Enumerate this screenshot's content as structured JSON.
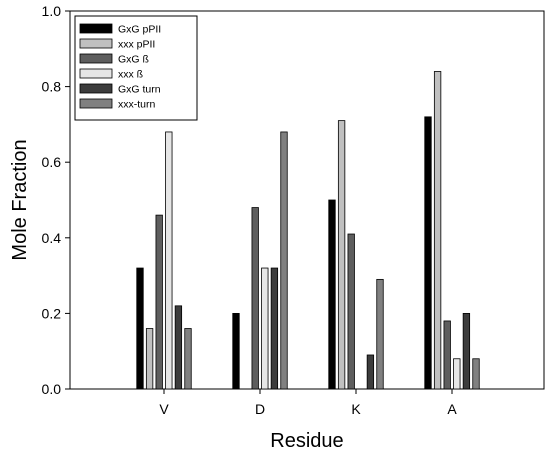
{
  "chart_data": {
    "type": "bar",
    "title": "",
    "xlabel": "Residue",
    "ylabel": "Mole Fraction",
    "categories": [
      "V",
      "D",
      "K",
      "A"
    ],
    "ylim": [
      0,
      1.0
    ],
    "yticks": [
      "0.0",
      "0.2",
      "0.4",
      "0.6",
      "0.8",
      "1.0"
    ],
    "grid": false,
    "legend_position": "top-left",
    "series": [
      {
        "name": "GxG pPII",
        "color": "#000000",
        "values": [
          0.32,
          0.2,
          0.5,
          0.72
        ]
      },
      {
        "name": "xxx pPII",
        "color": "#c0c0c0",
        "values": [
          0.16,
          0.0,
          0.71,
          0.84
        ]
      },
      {
        "name": "GxG ß",
        "color": "#5e5e5e",
        "values": [
          0.46,
          0.48,
          0.41,
          0.18
        ]
      },
      {
        "name": "xxx ß",
        "color": "#e6e6e6",
        "values": [
          0.68,
          0.32,
          0.0,
          0.08
        ]
      },
      {
        "name": "GxG turn",
        "color": "#3c3c3c",
        "values": [
          0.22,
          0.32,
          0.09,
          0.2
        ]
      },
      {
        "name": "xxx-turn",
        "color": "#808080",
        "values": [
          0.16,
          0.68,
          0.29,
          0.08
        ]
      }
    ]
  }
}
